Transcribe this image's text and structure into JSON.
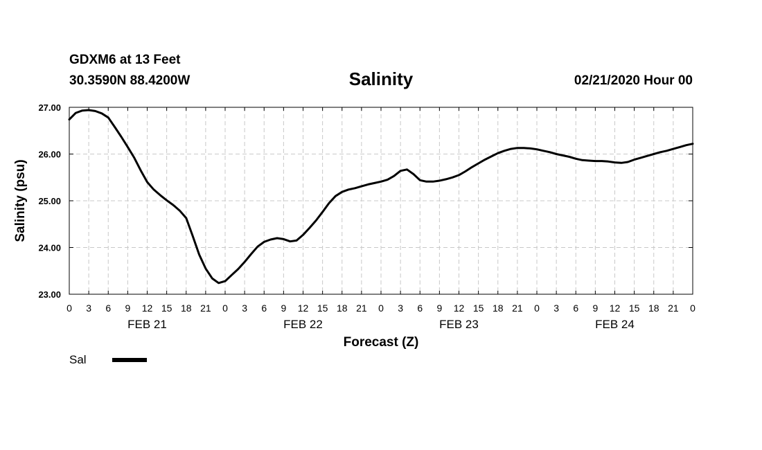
{
  "header": {
    "station": "GDXM6 at 13 Feet",
    "coords": "30.3590N 88.4200W",
    "issued": "02/21/2020 Hour 00"
  },
  "chart_data": {
    "type": "line",
    "title": "Salinity",
    "xlabel": "Forecast (Z)",
    "ylabel": "Salinity (psu)",
    "ylim": [
      23.0,
      27.0
    ],
    "yticks": [
      "23.00",
      "24.00",
      "25.00",
      "26.00",
      "27.00"
    ],
    "xlim_hours": [
      0,
      96
    ],
    "xtick_labels": [
      "0",
      "3",
      "6",
      "9",
      "12",
      "15",
      "18",
      "21",
      "0",
      "3",
      "6",
      "9",
      "12",
      "15",
      "18",
      "21",
      "0",
      "3",
      "6",
      "9",
      "12",
      "15",
      "18",
      "21",
      "0",
      "3",
      "6",
      "9",
      "12",
      "15",
      "18",
      "21",
      "0"
    ],
    "day_labels": [
      {
        "label": "FEB 21",
        "hour": 12
      },
      {
        "label": "FEB 22",
        "hour": 36
      },
      {
        "label": "FEB 23",
        "hour": 60
      },
      {
        "label": "FEB 24",
        "hour": 84
      }
    ],
    "grid": true,
    "legend": "bottom-left",
    "series": [
      {
        "name": "Sal",
        "color": "#000000",
        "points": [
          [
            0,
            26.74
          ],
          [
            1,
            26.88
          ],
          [
            2,
            26.93
          ],
          [
            3,
            26.94
          ],
          [
            4,
            26.92
          ],
          [
            5,
            26.87
          ],
          [
            6,
            26.78
          ],
          [
            7,
            26.58
          ],
          [
            8,
            26.37
          ],
          [
            9,
            26.15
          ],
          [
            10,
            25.92
          ],
          [
            11,
            25.65
          ],
          [
            12,
            25.4
          ],
          [
            13,
            25.24
          ],
          [
            14,
            25.12
          ],
          [
            15,
            25.01
          ],
          [
            16,
            24.91
          ],
          [
            17,
            24.79
          ],
          [
            18,
            24.63
          ],
          [
            19,
            24.25
          ],
          [
            20,
            23.85
          ],
          [
            21,
            23.55
          ],
          [
            22,
            23.34
          ],
          [
            23,
            23.24
          ],
          [
            24,
            23.28
          ],
          [
            25,
            23.41
          ],
          [
            26,
            23.54
          ],
          [
            27,
            23.69
          ],
          [
            28,
            23.86
          ],
          [
            29,
            24.02
          ],
          [
            30,
            24.12
          ],
          [
            31,
            24.17
          ],
          [
            32,
            24.2
          ],
          [
            33,
            24.18
          ],
          [
            34,
            24.13
          ],
          [
            35,
            24.15
          ],
          [
            36,
            24.27
          ],
          [
            37,
            24.42
          ],
          [
            38,
            24.58
          ],
          [
            39,
            24.76
          ],
          [
            40,
            24.95
          ],
          [
            41,
            25.1
          ],
          [
            42,
            25.19
          ],
          [
            43,
            25.24
          ],
          [
            44,
            25.27
          ],
          [
            45,
            25.31
          ],
          [
            46,
            25.35
          ],
          [
            47,
            25.38
          ],
          [
            48,
            25.41
          ],
          [
            49,
            25.45
          ],
          [
            50,
            25.53
          ],
          [
            51,
            25.64
          ],
          [
            52,
            25.67
          ],
          [
            53,
            25.57
          ],
          [
            54,
            25.44
          ],
          [
            55,
            25.41
          ],
          [
            56,
            25.41
          ],
          [
            57,
            25.43
          ],
          [
            58,
            25.46
          ],
          [
            59,
            25.5
          ],
          [
            60,
            25.55
          ],
          [
            61,
            25.63
          ],
          [
            62,
            25.72
          ],
          [
            63,
            25.8
          ],
          [
            64,
            25.88
          ],
          [
            65,
            25.95
          ],
          [
            66,
            26.02
          ],
          [
            67,
            26.07
          ],
          [
            68,
            26.11
          ],
          [
            69,
            26.13
          ],
          [
            70,
            26.13
          ],
          [
            71,
            26.12
          ],
          [
            72,
            26.1
          ],
          [
            73,
            26.07
          ],
          [
            74,
            26.04
          ],
          [
            75,
            26.0
          ],
          [
            76,
            25.97
          ],
          [
            77,
            25.94
          ],
          [
            78,
            25.9
          ],
          [
            79,
            25.87
          ],
          [
            80,
            25.86
          ],
          [
            81,
            25.85
          ],
          [
            82,
            25.85
          ],
          [
            83,
            25.84
          ],
          [
            84,
            25.82
          ],
          [
            85,
            25.81
          ],
          [
            86,
            25.83
          ],
          [
            87,
            25.88
          ],
          [
            88,
            25.92
          ],
          [
            89,
            25.96
          ],
          [
            90,
            26.0
          ],
          [
            91,
            26.04
          ],
          [
            92,
            26.07
          ],
          [
            93,
            26.11
          ],
          [
            94,
            26.15
          ],
          [
            95,
            26.19
          ],
          [
            96,
            26.22
          ]
        ]
      }
    ]
  }
}
